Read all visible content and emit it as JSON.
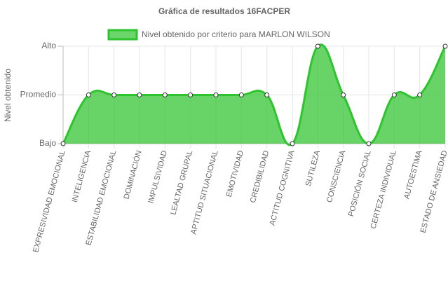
{
  "chart_data": {
    "type": "line",
    "title": "Gráfica de resultados 16FACPER",
    "y_label": "Nivel obtenido",
    "categories": [
      "EXPRESIVIDAD EMOCIONAL",
      "INTELIGENCIA",
      "ESTABILIDAD EMOCIONAL",
      "DOMINACIÓN",
      "IMPULSIVIDAD",
      "LEALTAD GRUPAL",
      "APTITUD SITUACIONAL",
      "EMOTIVIDAD",
      "CREDIBILIDAD",
      "ACTITUD COGNITIVA",
      "SUTILEZA",
      "CONSCIENCIA",
      "POSICIÓN SOCIAL",
      "CERTEZA INDIVIDUAL",
      "AUTOESTIMA",
      "ESTADO DE ANSIEDAD"
    ],
    "series": [
      {
        "name": "Nivel obtenido por criterio para MARLON WILSON",
        "color": "#2ec42e",
        "values": [
          1,
          2,
          2,
          2,
          2,
          2,
          2,
          2,
          2,
          1,
          3,
          2,
          1,
          2,
          2,
          3
        ]
      }
    ],
    "ylim": [
      1,
      3
    ],
    "yticks": [
      {
        "value": 1,
        "label": "Bajo"
      },
      {
        "value": 2,
        "label": "Promedio"
      },
      {
        "value": 3,
        "label": "Alto"
      }
    ],
    "grid": true,
    "fill": true
  }
}
